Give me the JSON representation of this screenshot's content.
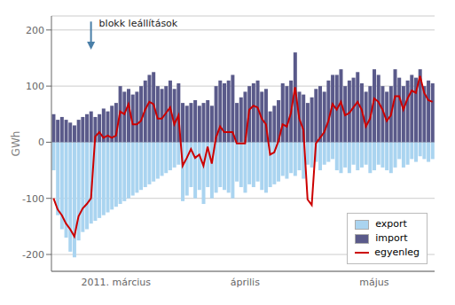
{
  "chart_data": {
    "type": "bar",
    "y_label": "GWh",
    "categories": [
      null,
      null,
      null,
      null,
      null,
      null,
      null,
      null,
      null,
      null,
      null,
      null,
      null,
      null,
      null,
      "2011. március",
      null,
      null,
      null,
      null,
      null,
      null,
      null,
      null,
      null,
      null,
      null,
      null,
      null,
      null,
      null,
      null,
      null,
      null,
      null,
      null,
      null,
      null,
      null,
      null,
      null,
      null,
      null,
      null,
      null,
      null,
      "április",
      null,
      null,
      null,
      null,
      null,
      null,
      null,
      null,
      null,
      null,
      null,
      null,
      null,
      null,
      null,
      null,
      null,
      null,
      null,
      null,
      null,
      null,
      null,
      null,
      null,
      null,
      null,
      null,
      null,
      null,
      "május",
      null,
      null,
      null,
      null,
      null,
      null,
      null,
      null,
      null,
      null,
      null,
      null,
      null,
      null
    ],
    "series": [
      {
        "name": "export",
        "type": "bar",
        "color": "#aad4f0",
        "values": [
          -50,
          -130,
          -155,
          -170,
          -195,
          -205,
          -175,
          -160,
          -155,
          -145,
          -140,
          -135,
          -130,
          -125,
          -120,
          -115,
          -110,
          -105,
          -100,
          -95,
          -90,
          -85,
          -80,
          -75,
          -70,
          -65,
          -60,
          -55,
          -50,
          -45,
          -40,
          -105,
          -95,
          -80,
          -100,
          -85,
          -110,
          -80,
          -100,
          -90,
          -80,
          -85,
          -90,
          -100,
          -70,
          -80,
          -90,
          -75,
          -80,
          -70,
          -85,
          -90,
          -80,
          -75,
          -70,
          -60,
          -65,
          -55,
          -60,
          -50,
          -65,
          -40,
          -45,
          -35,
          -50,
          -40,
          -35,
          -30,
          -50,
          -55,
          -45,
          -55,
          -40,
          -50,
          -45,
          -40,
          -55,
          -50,
          -40,
          -45,
          -50,
          -55,
          -45,
          -30,
          -45,
          -40,
          -30,
          -35,
          -25,
          -30,
          -35,
          -30
        ]
      },
      {
        "name": "import",
        "type": "bar",
        "color": "#5a5a8a",
        "values": [
          50,
          40,
          45,
          40,
          35,
          30,
          40,
          45,
          50,
          55,
          45,
          50,
          60,
          55,
          65,
          70,
          100,
          90,
          95,
          85,
          90,
          100,
          110,
          120,
          125,
          100,
          95,
          100,
          110,
          95,
          105,
          70,
          65,
          70,
          75,
          65,
          70,
          75,
          65,
          100,
          110,
          105,
          110,
          120,
          70,
          80,
          90,
          100,
          105,
          110,
          90,
          95,
          55,
          65,
          75,
          105,
          100,
          110,
          160,
          90,
          85,
          70,
          80,
          95,
          100,
          90,
          110,
          120,
          120,
          130,
          100,
          110,
          115,
          125,
          105,
          90,
          100,
          130,
          120,
          100,
          90,
          100,
          130,
          115,
          100,
          110,
          120,
          115,
          130,
          100,
          110,
          105
        ]
      },
      {
        "name": "egyenleg",
        "type": "line",
        "color": "#cc0000",
        "values": [
          -100,
          -120,
          -130,
          -145,
          -155,
          -168,
          -132,
          -118,
          -110,
          -100,
          10,
          18,
          8,
          12,
          8,
          12,
          55,
          50,
          68,
          32,
          32,
          38,
          58,
          72,
          68,
          42,
          42,
          52,
          62,
          32,
          48,
          -42,
          -28,
          -12,
          -28,
          -22,
          -42,
          -8,
          -38,
          8,
          28,
          18,
          18,
          18,
          -2,
          -2,
          -2,
          58,
          65,
          62,
          42,
          32,
          -22,
          -18,
          2,
          32,
          28,
          52,
          98,
          42,
          22,
          -102,
          -112,
          -2,
          8,
          18,
          38,
          68,
          58,
          72,
          48,
          52,
          62,
          72,
          58,
          28,
          42,
          78,
          72,
          58,
          38,
          48,
          82,
          82,
          58,
          78,
          92,
          88,
          118,
          88,
          75,
          72
        ]
      }
    ],
    "ylim": [
      -230,
      225
    ],
    "yticks": [
      -200,
      -100,
      0,
      100,
      200
    ],
    "grid": true,
    "legend": "lower right",
    "annotations": [
      {
        "text": "blokk leállítások",
        "x": 9,
        "y": 210,
        "arrow": {
          "y_start": 215,
          "y_end": 165,
          "color": "#4a7fa8"
        }
      }
    ]
  }
}
